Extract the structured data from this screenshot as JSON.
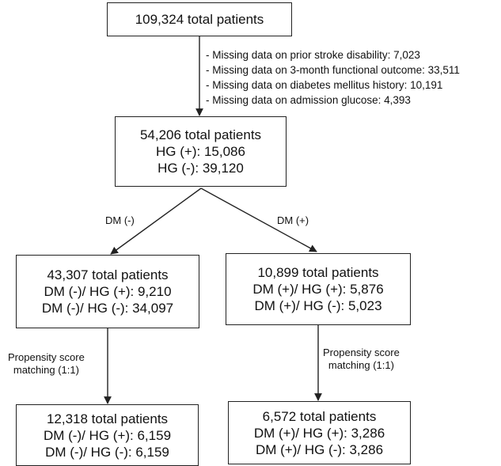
{
  "boxes": {
    "top": {
      "lines": [
        "109,324 total patients"
      ]
    },
    "cohort": {
      "lines": [
        "54,206 total patients",
        "HG (+): 15,086",
        "HG (-): 39,120"
      ]
    },
    "dm_neg": {
      "lines": [
        "43,307 total patients",
        "DM (-)/ HG (+): 9,210",
        "DM (-)/ HG (-): 34,097"
      ]
    },
    "dm_pos": {
      "lines": [
        "10,899 total patients",
        "DM (+)/ HG (+): 5,876",
        "DM (+)/ HG (-): 5,023"
      ]
    },
    "dm_neg_matched": {
      "lines": [
        "12,318 total patients",
        "DM (-)/ HG (+): 6,159",
        "DM (-)/ HG (-): 6,159"
      ]
    },
    "dm_pos_matched": {
      "lines": [
        "6,572 total patients",
        "DM (+)/ HG (+): 3,286",
        "DM (+)/ HG (-): 3,286"
      ]
    }
  },
  "exclusions": [
    "- Missing data on prior stroke disability: 7,023",
    "- Missing data on 3-month functional outcome: 33,511",
    "- Missing data on diabetes mellitus history: 10,191",
    "- Missing data on admission glucose: 4,393"
  ],
  "branch_labels": {
    "left": "DM (-)",
    "right": "DM (+)"
  },
  "matching_labels": {
    "left": [
      "Propensity score",
      "matching (1:1)"
    ],
    "right": [
      "Propensity score",
      "matching (1:1)"
    ]
  }
}
